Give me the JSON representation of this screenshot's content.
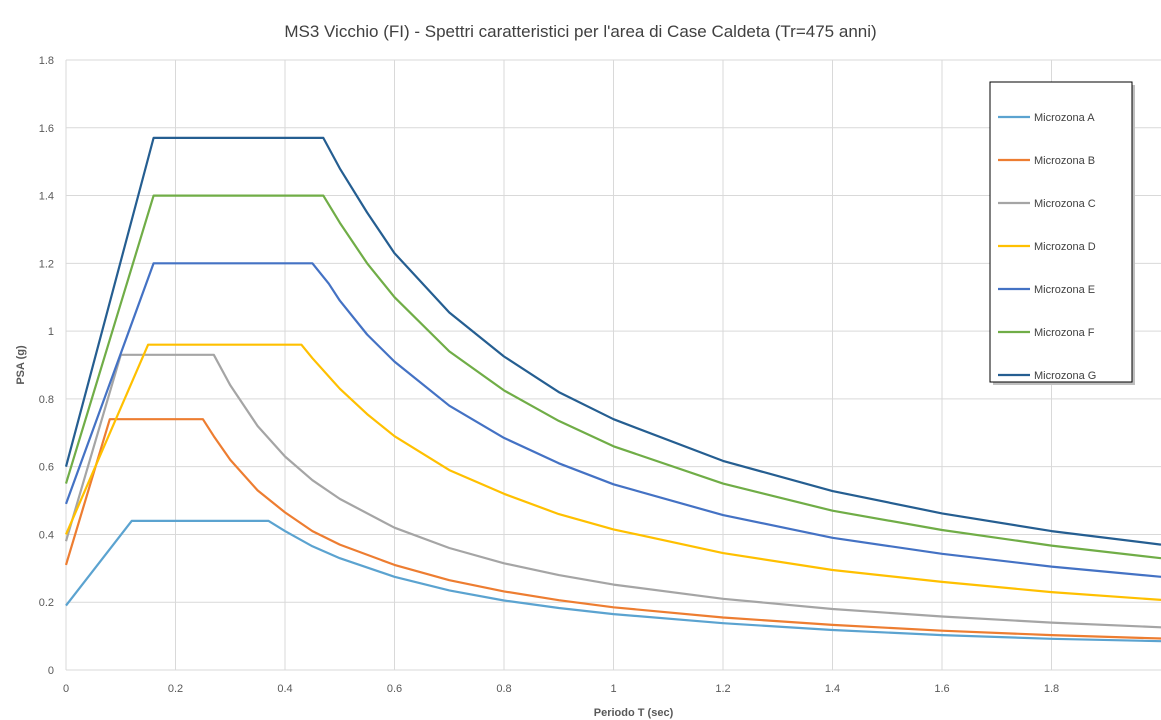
{
  "chart_data": {
    "type": "line",
    "title": "MS3 Vicchio (FI) - Spettri caratteristici per l'area di Case Caldeta (Tr=475 anni)",
    "xlabel": "Periodo T (sec)",
    "ylabel": "PSA (g)",
    "xlim": [
      0,
      2.0
    ],
    "ylim": [
      0,
      1.8
    ],
    "x_ticks": [
      "0",
      "0.2",
      "0.4",
      "0.6",
      "0.8",
      "1",
      "1.2",
      "1.4",
      "1.6",
      "1.8"
    ],
    "y_ticks": [
      "0",
      "0.2",
      "0.4",
      "0.6",
      "0.8",
      "1",
      "1.2",
      "1.4",
      "1.6",
      "1.8"
    ],
    "grid": true,
    "legend_position": "top-right",
    "series": [
      {
        "name": "Microzona A",
        "color": "#5ba3d0",
        "points": [
          [
            0,
            0.19
          ],
          [
            0.12,
            0.44
          ],
          [
            0.2,
            0.44
          ],
          [
            0.3,
            0.44
          ],
          [
            0.37,
            0.44
          ],
          [
            0.4,
            0.41
          ],
          [
            0.45,
            0.365
          ],
          [
            0.5,
            0.33
          ],
          [
            0.6,
            0.275
          ],
          [
            0.7,
            0.235
          ],
          [
            0.8,
            0.205
          ],
          [
            0.9,
            0.183
          ],
          [
            1.0,
            0.165
          ],
          [
            1.2,
            0.138
          ],
          [
            1.4,
            0.118
          ],
          [
            1.6,
            0.103
          ],
          [
            1.8,
            0.092
          ],
          [
            2.0,
            0.085
          ]
        ]
      },
      {
        "name": "Microzona B",
        "color": "#ed7d31",
        "points": [
          [
            0,
            0.31
          ],
          [
            0.08,
            0.74
          ],
          [
            0.15,
            0.74
          ],
          [
            0.25,
            0.74
          ],
          [
            0.27,
            0.69
          ],
          [
            0.3,
            0.62
          ],
          [
            0.35,
            0.53
          ],
          [
            0.4,
            0.465
          ],
          [
            0.45,
            0.41
          ],
          [
            0.5,
            0.37
          ],
          [
            0.6,
            0.31
          ],
          [
            0.7,
            0.265
          ],
          [
            0.8,
            0.232
          ],
          [
            0.9,
            0.206
          ],
          [
            1.0,
            0.185
          ],
          [
            1.2,
            0.155
          ],
          [
            1.4,
            0.133
          ],
          [
            1.6,
            0.116
          ],
          [
            1.8,
            0.103
          ],
          [
            2.0,
            0.093
          ]
        ]
      },
      {
        "name": "Microzona C",
        "color": "#a5a5a5",
        "points": [
          [
            0,
            0.38
          ],
          [
            0.1,
            0.93
          ],
          [
            0.2,
            0.93
          ],
          [
            0.27,
            0.93
          ],
          [
            0.3,
            0.84
          ],
          [
            0.35,
            0.72
          ],
          [
            0.4,
            0.63
          ],
          [
            0.45,
            0.56
          ],
          [
            0.5,
            0.505
          ],
          [
            0.6,
            0.42
          ],
          [
            0.7,
            0.36
          ],
          [
            0.8,
            0.315
          ],
          [
            0.9,
            0.28
          ],
          [
            1.0,
            0.252
          ],
          [
            1.2,
            0.21
          ],
          [
            1.4,
            0.18
          ],
          [
            1.6,
            0.158
          ],
          [
            1.8,
            0.14
          ],
          [
            2.0,
            0.126
          ]
        ]
      },
      {
        "name": "Microzona D",
        "color": "#ffc000",
        "points": [
          [
            0,
            0.4
          ],
          [
            0.15,
            0.96
          ],
          [
            0.3,
            0.96
          ],
          [
            0.43,
            0.96
          ],
          [
            0.45,
            0.92
          ],
          [
            0.5,
            0.83
          ],
          [
            0.55,
            0.755
          ],
          [
            0.6,
            0.69
          ],
          [
            0.7,
            0.59
          ],
          [
            0.8,
            0.52
          ],
          [
            0.9,
            0.46
          ],
          [
            1.0,
            0.415
          ],
          [
            1.2,
            0.345
          ],
          [
            1.4,
            0.295
          ],
          [
            1.6,
            0.26
          ],
          [
            1.8,
            0.23
          ],
          [
            2.0,
            0.207
          ]
        ]
      },
      {
        "name": "Microzona E",
        "color": "#4472c4",
        "points": [
          [
            0,
            0.49
          ],
          [
            0.16,
            1.2
          ],
          [
            0.3,
            1.2
          ],
          [
            0.45,
            1.2
          ],
          [
            0.48,
            1.14
          ],
          [
            0.5,
            1.09
          ],
          [
            0.55,
            0.99
          ],
          [
            0.6,
            0.91
          ],
          [
            0.7,
            0.78
          ],
          [
            0.8,
            0.685
          ],
          [
            0.9,
            0.61
          ],
          [
            1.0,
            0.548
          ],
          [
            1.2,
            0.457
          ],
          [
            1.4,
            0.39
          ],
          [
            1.6,
            0.343
          ],
          [
            1.8,
            0.305
          ],
          [
            2.0,
            0.275
          ]
        ]
      },
      {
        "name": "Microzona F",
        "color": "#70ad47",
        "points": [
          [
            0,
            0.55
          ],
          [
            0.16,
            1.4
          ],
          [
            0.3,
            1.4
          ],
          [
            0.47,
            1.4
          ],
          [
            0.5,
            1.32
          ],
          [
            0.55,
            1.2
          ],
          [
            0.6,
            1.1
          ],
          [
            0.7,
            0.94
          ],
          [
            0.8,
            0.825
          ],
          [
            0.9,
            0.735
          ],
          [
            1.0,
            0.66
          ],
          [
            1.2,
            0.55
          ],
          [
            1.4,
            0.47
          ],
          [
            1.6,
            0.413
          ],
          [
            1.8,
            0.367
          ],
          [
            2.0,
            0.33
          ]
        ]
      },
      {
        "name": "Microzona G",
        "color": "#255e91",
        "points": [
          [
            0,
            0.6
          ],
          [
            0.16,
            1.57
          ],
          [
            0.3,
            1.57
          ],
          [
            0.47,
            1.57
          ],
          [
            0.5,
            1.48
          ],
          [
            0.55,
            1.35
          ],
          [
            0.6,
            1.23
          ],
          [
            0.7,
            1.055
          ],
          [
            0.8,
            0.925
          ],
          [
            0.9,
            0.82
          ],
          [
            1.0,
            0.74
          ],
          [
            1.2,
            0.617
          ],
          [
            1.4,
            0.528
          ],
          [
            1.6,
            0.462
          ],
          [
            1.8,
            0.41
          ],
          [
            2.0,
            0.37
          ]
        ]
      }
    ]
  }
}
